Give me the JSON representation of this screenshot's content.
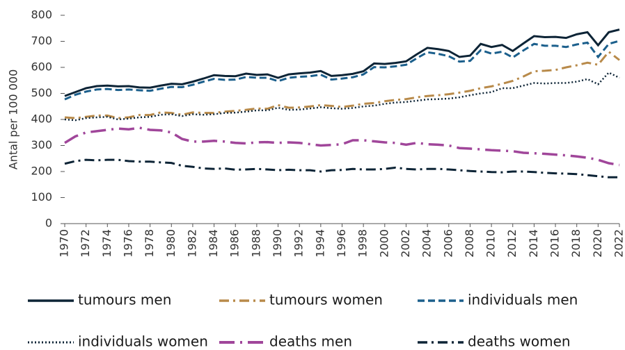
{
  "chart_data": {
    "type": "line",
    "y_label": "Antal per 100 000",
    "x": [
      1970,
      1971,
      1972,
      1973,
      1974,
      1975,
      1976,
      1977,
      1978,
      1979,
      1980,
      1981,
      1982,
      1983,
      1984,
      1985,
      1986,
      1987,
      1988,
      1989,
      1990,
      1991,
      1992,
      1993,
      1994,
      1995,
      1996,
      1997,
      1998,
      1999,
      2000,
      2001,
      2002,
      2003,
      2004,
      2005,
      2006,
      2007,
      2008,
      2009,
      2010,
      2011,
      2012,
      2013,
      2014,
      2015,
      2016,
      2017,
      2018,
      2019,
      2020,
      2021,
      2022
    ],
    "xlim": [
      1970,
      2022
    ],
    "xticks": [
      1970,
      1972,
      1974,
      1976,
      1978,
      1980,
      1982,
      1984,
      1986,
      1988,
      1990,
      1992,
      1994,
      1996,
      1998,
      2000,
      2002,
      2004,
      2006,
      2008,
      2010,
      2012,
      2014,
      2016,
      2018,
      2020,
      2022
    ],
    "ylim": [
      0,
      800
    ],
    "yticks": [
      0,
      100,
      200,
      300,
      400,
      500,
      600,
      700,
      800
    ],
    "grid": false,
    "legend": "bottom",
    "series": [
      {
        "name": "tumours men",
        "color": "#0d2436",
        "style": "solid",
        "values": [
          490,
          505,
          520,
          528,
          530,
          527,
          528,
          523,
          522,
          530,
          537,
          535,
          545,
          557,
          570,
          567,
          566,
          576,
          571,
          573,
          560,
          573,
          577,
          580,
          586,
          567,
          570,
          575,
          585,
          615,
          613,
          617,
          623,
          650,
          675,
          670,
          663,
          640,
          645,
          690,
          678,
          686,
          663,
          692,
          720,
          716,
          717,
          713,
          727,
          735,
          685,
          735,
          745
        ]
      },
      {
        "name": "tumours women",
        "color": "#b88a4a",
        "style": "dash-dot",
        "values": [
          408,
          405,
          410,
          415,
          415,
          405,
          408,
          417,
          417,
          427,
          425,
          418,
          427,
          425,
          425,
          430,
          433,
          437,
          442,
          441,
          455,
          445,
          446,
          450,
          455,
          452,
          448,
          453,
          460,
          463,
          470,
          475,
          478,
          485,
          490,
          493,
          497,
          503,
          510,
          520,
          527,
          537,
          548,
          565,
          585,
          587,
          590,
          600,
          608,
          618,
          610,
          660,
          628
        ]
      },
      {
        "name": "individuals men",
        "color": "#1b5f8c",
        "style": "dashed",
        "values": [
          477,
          495,
          507,
          515,
          517,
          513,
          515,
          512,
          510,
          518,
          525,
          524,
          533,
          545,
          556,
          552,
          553,
          563,
          560,
          560,
          547,
          560,
          564,
          566,
          572,
          553,
          557,
          562,
          573,
          601,
          600,
          604,
          610,
          635,
          658,
          652,
          643,
          622,
          625,
          666,
          653,
          660,
          638,
          665,
          690,
          683,
          683,
          678,
          688,
          695,
          640,
          690,
          702
        ]
      },
      {
        "name": "individuals women",
        "color": "#0d2436",
        "style": "dotted",
        "values": [
          400,
          397,
          405,
          408,
          410,
          400,
          403,
          408,
          410,
          418,
          420,
          413,
          420,
          418,
          420,
          425,
          426,
          430,
          435,
          435,
          445,
          437,
          438,
          442,
          447,
          443,
          441,
          444,
          450,
          453,
          460,
          465,
          467,
          472,
          477,
          478,
          480,
          485,
          493,
          500,
          505,
          520,
          520,
          530,
          540,
          538,
          540,
          540,
          545,
          555,
          535,
          580,
          560
        ]
      },
      {
        "name": "deaths men",
        "color": "#a0469a",
        "style": "long-dash-dot",
        "values": [
          310,
          335,
          350,
          355,
          360,
          365,
          362,
          368,
          360,
          358,
          350,
          325,
          315,
          315,
          318,
          315,
          310,
          308,
          312,
          313,
          310,
          312,
          310,
          305,
          300,
          302,
          305,
          320,
          320,
          316,
          312,
          310,
          303,
          310,
          305,
          303,
          300,
          290,
          288,
          285,
          282,
          280,
          278,
          272,
          270,
          268,
          265,
          262,
          258,
          253,
          245,
          232,
          225
        ]
      },
      {
        "name": "deaths women",
        "color": "#0d2436",
        "style": "dash-dot",
        "values": [
          230,
          240,
          245,
          243,
          245,
          245,
          240,
          238,
          238,
          235,
          233,
          222,
          218,
          212,
          210,
          212,
          207,
          208,
          210,
          208,
          205,
          207,
          205,
          205,
          200,
          205,
          206,
          210,
          208,
          208,
          210,
          215,
          210,
          208,
          210,
          210,
          208,
          205,
          202,
          200,
          198,
          197,
          200,
          200,
          198,
          195,
          193,
          192,
          190,
          186,
          182,
          178,
          178
        ]
      }
    ]
  }
}
